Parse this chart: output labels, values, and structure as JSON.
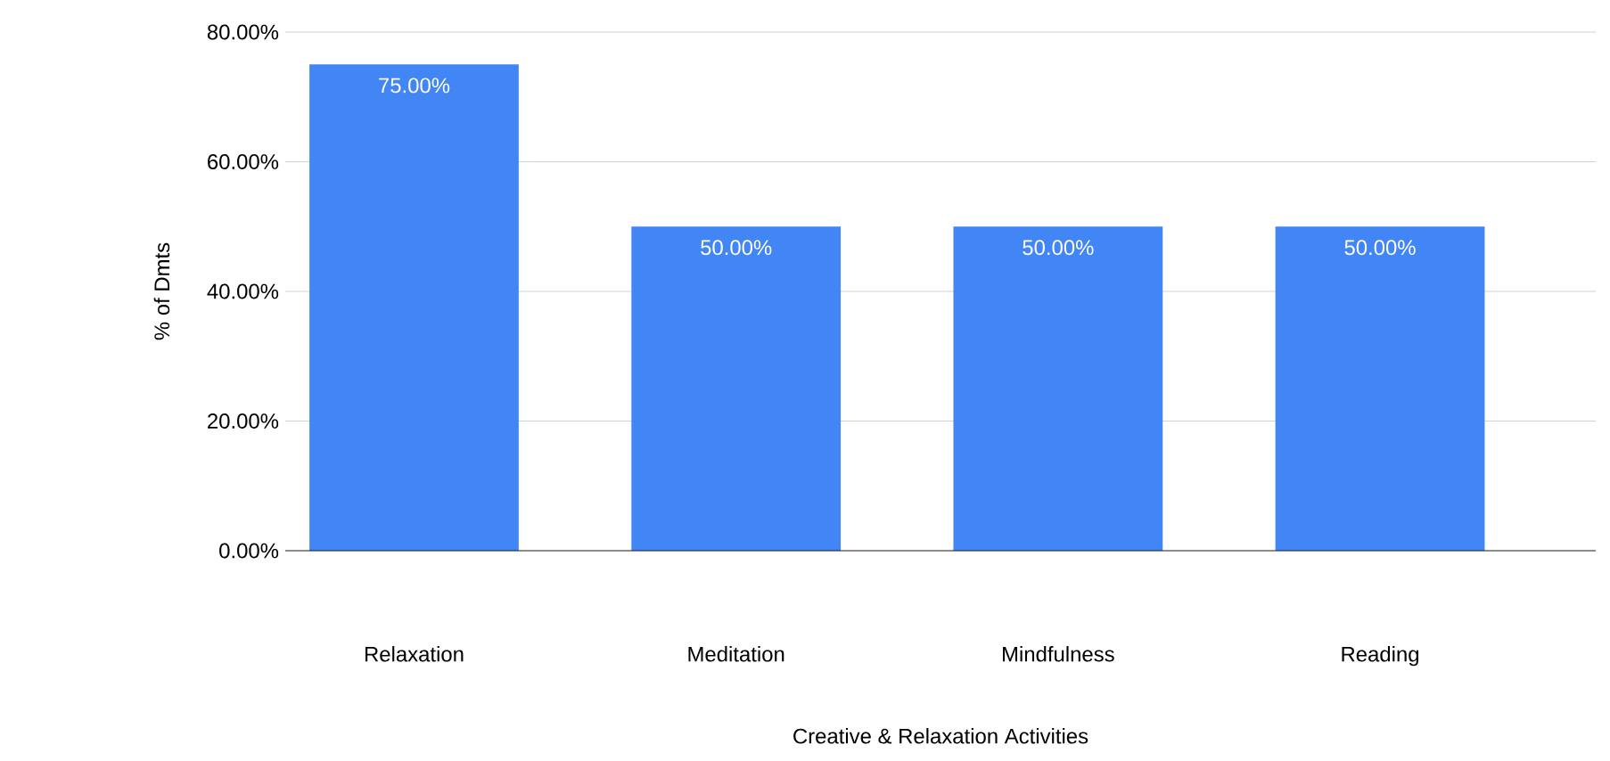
{
  "chart_data": {
    "type": "bar",
    "xlabel": "Creative & Relaxation Activities",
    "ylabel": "% of Dmts",
    "categories": [
      "Relaxation",
      "Meditation",
      "Mindfulness",
      "Reading"
    ],
    "values": [
      75,
      50,
      50,
      50
    ],
    "value_labels": [
      "75.00%",
      "50.00%",
      "50.00%",
      "50.00%"
    ],
    "color": "#4285f4",
    "ylim": [
      0,
      80
    ],
    "yticks": [
      {
        "value": 0,
        "label": "0.00%"
      },
      {
        "value": 20,
        "label": "20.00%"
      },
      {
        "value": 40,
        "label": "40.00%"
      },
      {
        "value": 60,
        "label": "60.00%"
      },
      {
        "value": 80,
        "label": "80.00%"
      }
    ],
    "grid": "y"
  }
}
